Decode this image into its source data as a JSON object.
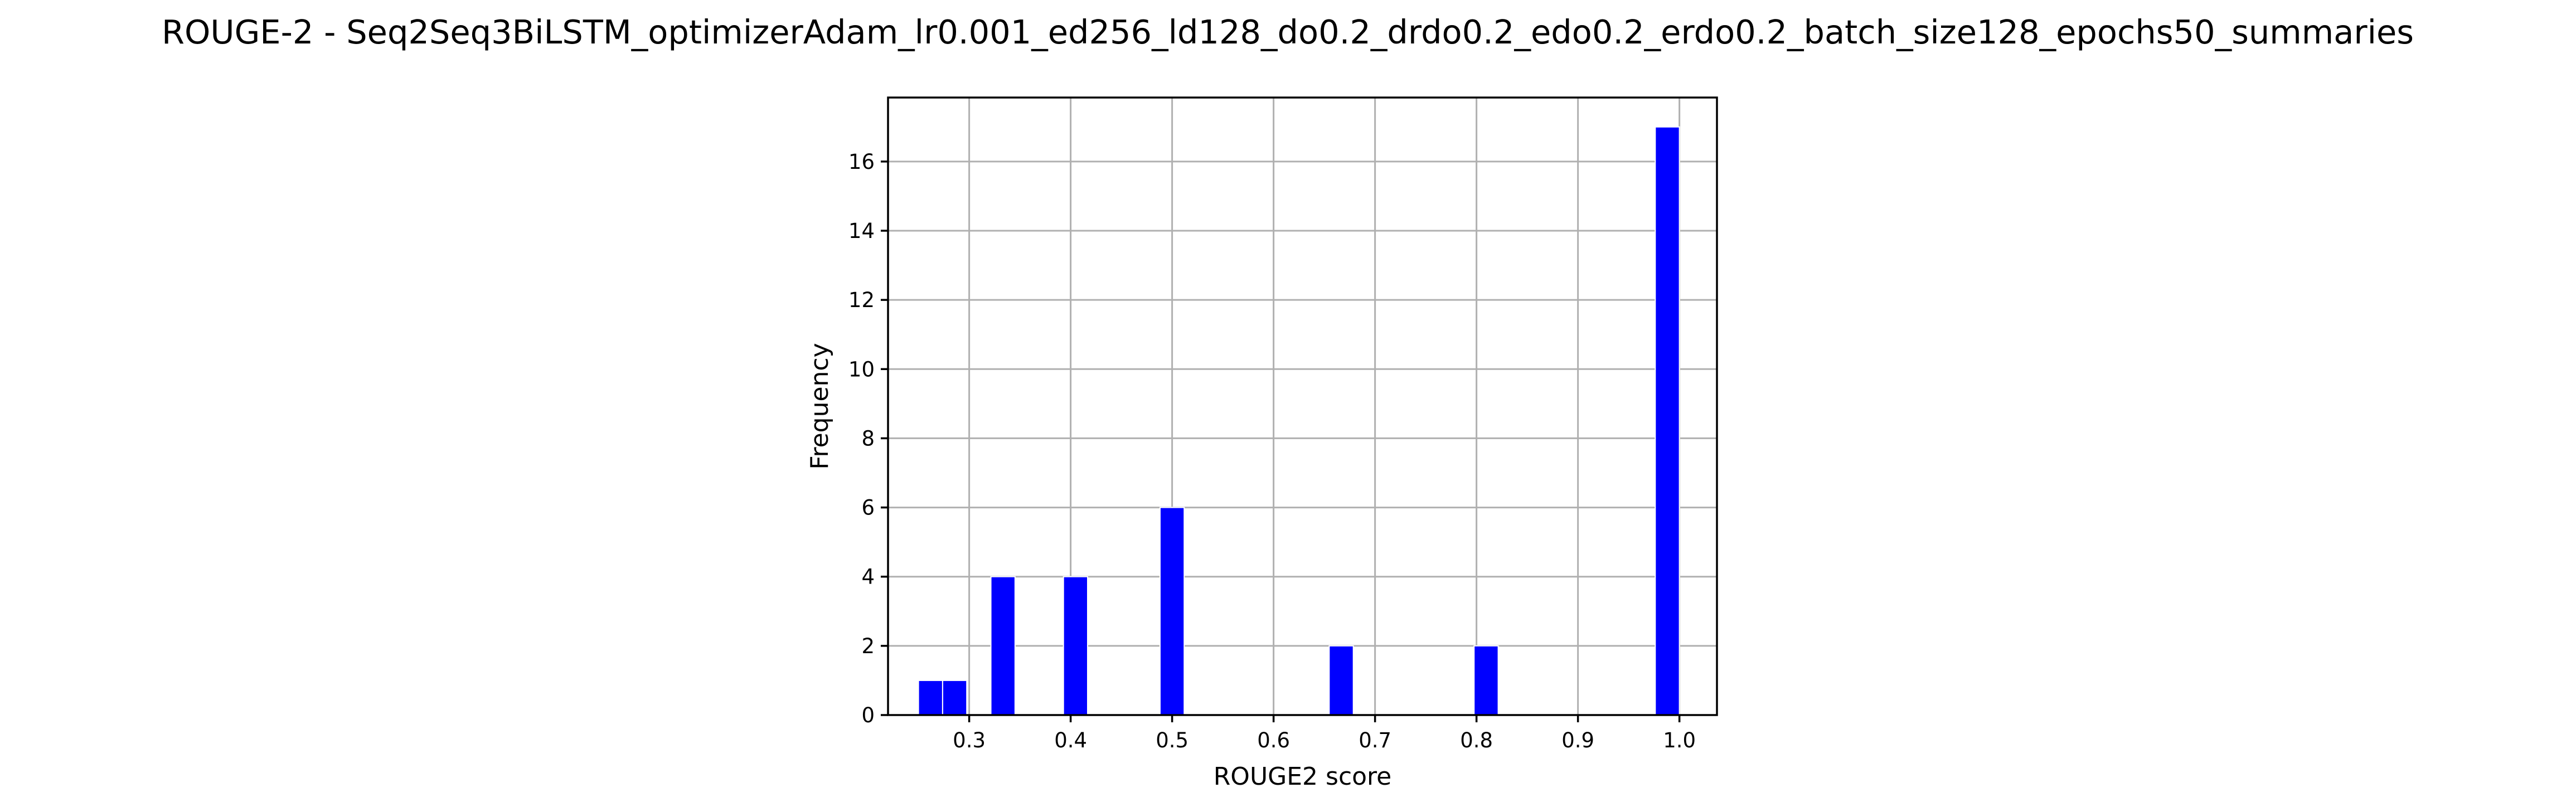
{
  "chart_data": {
    "type": "bar",
    "title": "ROUGE-2 - Seq2Seq3BiLSTM_optimizerAdam_lr0.001_ed256_ld128_do0.2_drdo0.2_edo0.2_erdo0.2_batch_size128_epochs50_summaries",
    "xlabel": "ROUGE2 score",
    "ylabel": "Frequency",
    "xlim": [
      0.22,
      1.037
    ],
    "ylim": [
      0,
      17.85
    ],
    "xticks": [
      "0.3",
      "0.4",
      "0.5",
      "0.6",
      "0.7",
      "0.8",
      "0.9",
      "1.0"
    ],
    "yticks": [
      "0",
      "2",
      "4",
      "6",
      "8",
      "10",
      "12",
      "14",
      "16"
    ],
    "bin_width": 0.0238,
    "bins": [
      {
        "start": 0.25,
        "count": 1
      },
      {
        "start": 0.2738,
        "count": 1
      },
      {
        "start": 0.3214,
        "count": 4
      },
      {
        "start": 0.3929,
        "count": 4
      },
      {
        "start": 0.4881,
        "count": 6
      },
      {
        "start": 0.6548,
        "count": 2
      },
      {
        "start": 0.7976,
        "count": 2
      },
      {
        "start": 0.9762,
        "count": 17
      }
    ],
    "grid": true,
    "bar_color": "#0000ff"
  }
}
